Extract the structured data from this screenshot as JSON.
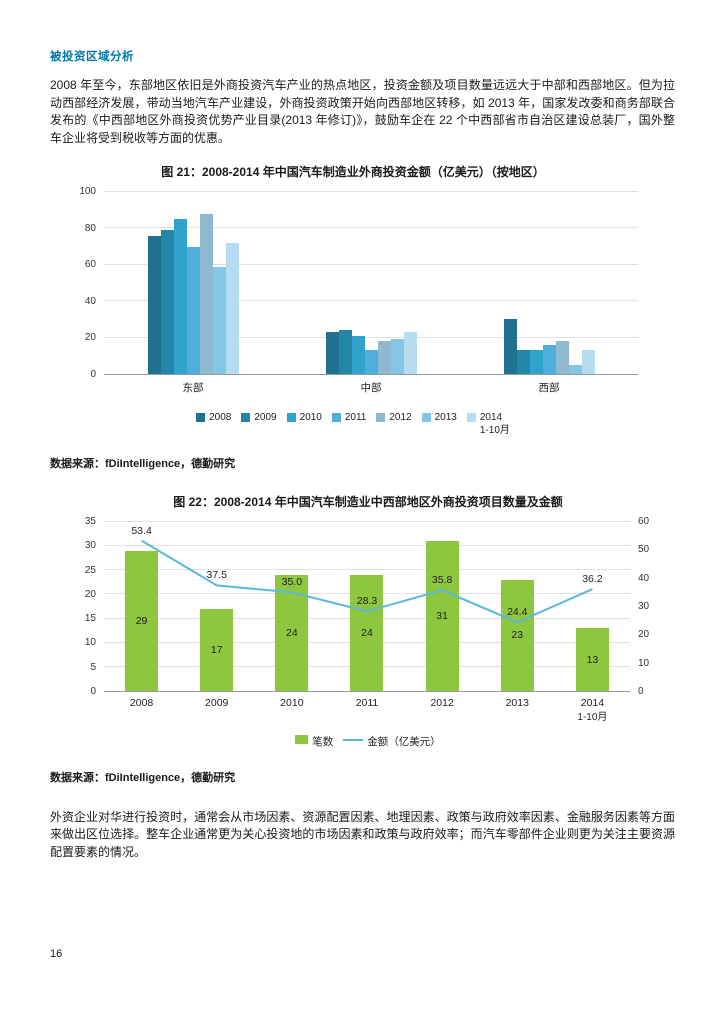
{
  "page_number": "16",
  "heading": "被投资区域分析",
  "paragraphs": [
    "2008 年至今，东部地区依旧是外商投资汽车产业的热点地区，投资金额及项目数量远远大于中部和西部地区。但为拉动西部经济发展，带动当地汽车产业建设，外商投资政策开始向西部地区转移，如 2013 年，国家发改委和商务部联合发布的《中西部地区外商投资优势产业目录(2013 年修订)》，鼓励车企在 22 个中西部省市自治区建设总装厂，国外整车企业将受到税收等方面的优惠。",
    "外资企业对华进行投资时，通常会从市场因素、资源配置因素、地理因素、政策与政府效率因素、金融服务因素等方面来做出区位选择。整车企业通常更为关心投资地的市场因素和政策与政府效率；而汽车零部件企业则更为关注主要资源配置要素的情况。"
  ],
  "sources": [
    "数据来源：fDiIntelligence，德勤研究",
    "数据来源：fDiIntelligence，德勤研究"
  ],
  "chart_data": [
    {
      "type": "bar",
      "title": "图 21：2008-2014 年中国汽车制造业外商投资金额（亿美元）（按地区）",
      "categories": [
        "东部",
        "中部",
        "西部"
      ],
      "series": [
        {
          "name": "2008",
          "color": "#20708F",
          "values": [
            76,
            23,
            30
          ]
        },
        {
          "name": "2009",
          "color": "#2487A8",
          "values": [
            79,
            24,
            13
          ]
        },
        {
          "name": "2010",
          "color": "#2FA3CC",
          "values": [
            85,
            21,
            13
          ]
        },
        {
          "name": "2011",
          "color": "#4FAEDB",
          "values": [
            70,
            13,
            16
          ]
        },
        {
          "name": "2012",
          "color": "#8FB9CE",
          "values": [
            88,
            18,
            18
          ]
        },
        {
          "name": "2013",
          "color": "#83C6E6",
          "values": [
            59,
            19,
            5
          ]
        },
        {
          "name": "2014",
          "sublabel": "1-10月",
          "color": "#B5DCF0",
          "values": [
            72,
            23,
            13
          ]
        }
      ],
      "ylim": [
        0,
        100
      ],
      "yticks": [
        0,
        20,
        40,
        60,
        80,
        100
      ],
      "grid": true,
      "legend_position": "bottom"
    },
    {
      "type": "bar+line",
      "title": "图 22：2008-2014 年中国汽车制造业中西部地区外商投资项目数量及金额",
      "categories": [
        "2008",
        "2009",
        "2010",
        "2011",
        "2012",
        "2013",
        "2014"
      ],
      "category_sublabels": [
        "",
        "",
        "",
        "",
        "",
        "",
        "1-10月"
      ],
      "bar_series": {
        "name": "笔数",
        "color": "#8DC63F",
        "values": [
          29,
          17,
          24,
          24,
          31,
          23,
          13
        ]
      },
      "line_series": {
        "name": "金额（亿美元）",
        "color": "#5BB8DB",
        "values": [
          53.4,
          37.5,
          35.0,
          28.3,
          35.8,
          24.4,
          36.2
        ],
        "labels": [
          "53.4",
          "37.5",
          "35.0",
          "28.3",
          "35.8",
          "24.4",
          "36.2"
        ]
      },
      "left_ylim": [
        0,
        35
      ],
      "left_yticks": [
        0,
        5,
        10,
        15,
        20,
        25,
        30,
        35
      ],
      "right_ylim": [
        0,
        60
      ],
      "right_yticks": [
        0,
        10,
        20,
        30,
        40,
        50,
        60
      ],
      "grid": true,
      "legend_position": "bottom"
    }
  ]
}
